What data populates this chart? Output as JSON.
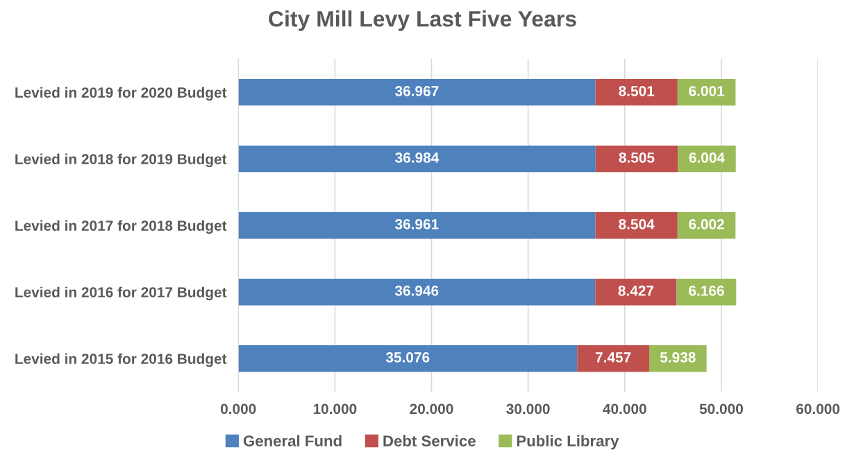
{
  "chart_data": {
    "type": "bar",
    "orientation": "horizontal",
    "stacked": true,
    "title": "City Mill Levy Last Five Years",
    "categories": [
      "Levied in 2019 for 2020 Budget",
      "Levied in 2018 for 2019 Budget",
      "Levied in 2017 for 2018 Budget",
      "Levied in 2016 for 2017 Budget",
      "Levied in 2015 for 2016 Budget"
    ],
    "series": [
      {
        "name": "General Fund",
        "color": "#4f81bd",
        "values": [
          36.967,
          36.984,
          36.961,
          36.946,
          35.076
        ]
      },
      {
        "name": "Debt Service",
        "color": "#c0504d",
        "values": [
          8.501,
          8.505,
          8.504,
          8.427,
          7.457
        ]
      },
      {
        "name": "Public Library",
        "color": "#9bbb59",
        "values": [
          6.001,
          6.004,
          6.002,
          6.166,
          5.938
        ]
      }
    ],
    "xlim": [
      0,
      60
    ],
    "xticks": [
      {
        "value": 0,
        "label": "0.000"
      },
      {
        "value": 10,
        "label": "10.000"
      },
      {
        "value": 20,
        "label": "20.000"
      },
      {
        "value": 30,
        "label": "30.000"
      },
      {
        "value": 40,
        "label": "40.000"
      },
      {
        "value": 50,
        "label": "50.000"
      },
      {
        "value": 60,
        "label": "60.000"
      }
    ],
    "grid": "x",
    "legend": "bottom",
    "data_labels": true
  }
}
